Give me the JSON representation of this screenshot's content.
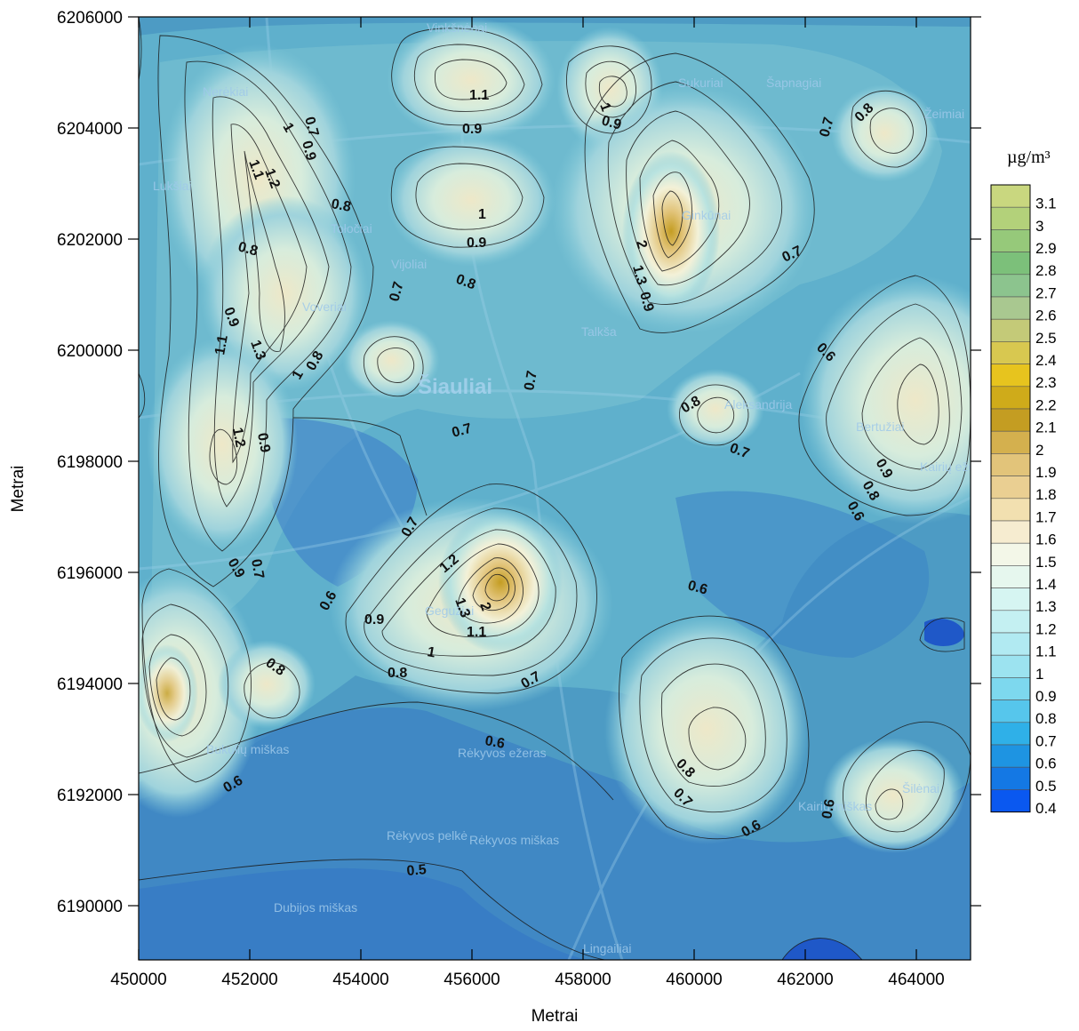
{
  "x_axis": {
    "title": "Metrai",
    "ticks": [
      "450000",
      "452000",
      "454000",
      "456000",
      "458000",
      "460000",
      "462000",
      "464000"
    ]
  },
  "y_axis": {
    "title": "Metrai",
    "ticks": [
      "6206000",
      "6204000",
      "6202000",
      "6200000",
      "6198000",
      "6196000",
      "6194000",
      "6192000",
      "6190000"
    ]
  },
  "colorbar": {
    "unit": "µg/m³",
    "levels": [
      {
        "label": "3.1",
        "color": "#c9d77f"
      },
      {
        "label": "3",
        "color": "#b3d17a"
      },
      {
        "label": "2.9",
        "color": "#96c97a"
      },
      {
        "label": "2.8",
        "color": "#7cc07a"
      },
      {
        "label": "2.7",
        "color": "#8cc48e"
      },
      {
        "label": "2.6",
        "color": "#a9c890"
      },
      {
        "label": "2.5",
        "color": "#c4ca78"
      },
      {
        "label": "2.4",
        "color": "#d8c850"
      },
      {
        "label": "2.3",
        "color": "#e7c41e"
      },
      {
        "label": "2.2",
        "color": "#cfab1a"
      },
      {
        "label": "2.1",
        "color": "#c49d22"
      },
      {
        "label": "2",
        "color": "#d4b04e"
      },
      {
        "label": "1.9",
        "color": "#e2c47a"
      },
      {
        "label": "1.8",
        "color": "#eacf92"
      },
      {
        "label": "1.7",
        "color": "#f2e0b0"
      },
      {
        "label": "1.6",
        "color": "#f6ecd0"
      },
      {
        "label": "1.5",
        "color": "#f3f7e8"
      },
      {
        "label": "1.4",
        "color": "#e6f7ee"
      },
      {
        "label": "1.3",
        "color": "#d6f5f2"
      },
      {
        "label": "1.2",
        "color": "#c4f0f2"
      },
      {
        "label": "1.1",
        "color": "#b1eaf2"
      },
      {
        "label": "1",
        "color": "#9ce3f0"
      },
      {
        "label": "0.9",
        "color": "#7dd8ee"
      },
      {
        "label": "0.8",
        "color": "#56c6ec"
      },
      {
        "label": "0.7",
        "color": "#2fb0e8"
      },
      {
        "label": "0.6",
        "color": "#1e94e2"
      },
      {
        "label": "0.5",
        "color": "#1478e4"
      },
      {
        "label": "0.4",
        "color": "#0a58f0"
      }
    ]
  },
  "place_labels": [
    "Vinkšnėnai",
    "Nerėkiai",
    "Lukšiai",
    "Tołočiai",
    "Vijoliai",
    "Voveriai",
    "Šiauliai",
    "Gegužiai",
    "Rėkyvos ežeras",
    "Rėkyvos pelkė",
    "Rėkyvos miškas",
    "Sukuriai",
    "Šapnagiai",
    "Žeimiai",
    "Ginkūnai",
    "Talkša",
    "Aleksandrija",
    "Bertužiai",
    "Kairių ežeras",
    "Šilėnai",
    "Lingailiai",
    "Dubijos miškas",
    "Bukulių miškas",
    "Kairių miškas"
  ],
  "contours": [
    {
      "label": "1.1"
    },
    {
      "label": "0.9"
    },
    {
      "label": "0.8"
    },
    {
      "label": "0.7"
    },
    {
      "label": "1"
    },
    {
      "label": "0.6"
    },
    {
      "label": "1.2"
    },
    {
      "label": "1.3"
    },
    {
      "label": "0.5"
    },
    {
      "label": "2"
    }
  ]
}
